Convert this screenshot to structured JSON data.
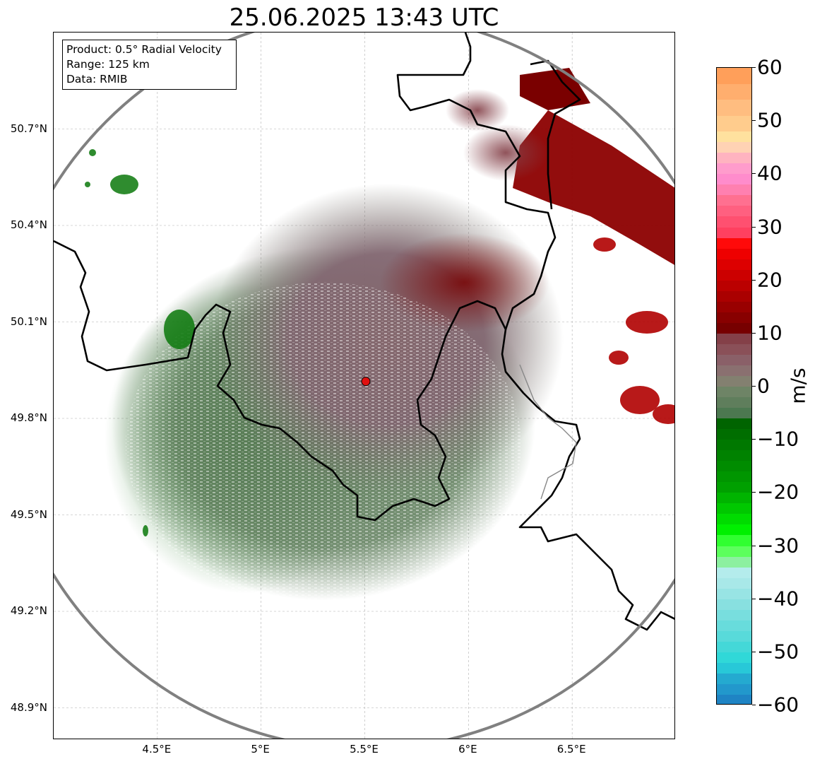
{
  "title": "25.06.2025 13:43 UTC",
  "info": {
    "product": "Product: 0.5° Radial Velocity",
    "range": "Range: 125 km",
    "source": "Data: RMIB"
  },
  "map": {
    "lon_range": [
      4.0,
      7.0
    ],
    "lat_range": [
      48.8,
      51.0
    ],
    "radar_site": {
      "lon": 5.505,
      "lat": 49.915
    },
    "lat_ticks": [
      "50.7°N",
      "50.4°N",
      "50.1°N",
      "49.8°N",
      "49.5°N",
      "49.2°N",
      "48.9°N"
    ],
    "lat_values": [
      50.7,
      50.4,
      50.1,
      49.8,
      49.5,
      49.2,
      48.9
    ],
    "lon_ticks": [
      "4.5°E",
      "5°E",
      "5.5°E",
      "6°E",
      "6.5°E"
    ],
    "lon_values": [
      4.5,
      5.0,
      5.5,
      6.0,
      6.5
    ],
    "grid": true,
    "range_ring_color": "#808080",
    "border_color": "#000000"
  },
  "colorbar": {
    "unit": "m/s",
    "min": -60,
    "max": 60,
    "tick_labels": [
      "60",
      "50",
      "40",
      "30",
      "20",
      "10",
      "0",
      "−10",
      "−20",
      "−30",
      "−40",
      "−50",
      "−60"
    ],
    "tick_values": [
      60,
      50,
      40,
      30,
      20,
      10,
      0,
      -10,
      -20,
      -30,
      -40,
      -50,
      -60
    ],
    "bands": [
      {
        "from": 57,
        "to": 60,
        "color": "#ff9f5a"
      },
      {
        "from": 54,
        "to": 57,
        "color": "#ffae6e"
      },
      {
        "from": 51,
        "to": 54,
        "color": "#ffbd80"
      },
      {
        "from": 48,
        "to": 51,
        "color": "#ffcc8d"
      },
      {
        "from": 46,
        "to": 48,
        "color": "#ffe19e"
      },
      {
        "from": 44,
        "to": 46,
        "color": "#ffd2b4"
      },
      {
        "from": 42,
        "to": 44,
        "color": "#ffb3c0"
      },
      {
        "from": 40,
        "to": 42,
        "color": "#ff9ccc"
      },
      {
        "from": 38,
        "to": 40,
        "color": "#ff8ccc"
      },
      {
        "from": 36,
        "to": 38,
        "color": "#ff80b0"
      },
      {
        "from": 34,
        "to": 36,
        "color": "#ff7090"
      },
      {
        "from": 32,
        "to": 34,
        "color": "#ff6080"
      },
      {
        "from": 30,
        "to": 32,
        "color": "#ff5070"
      },
      {
        "from": 28,
        "to": 30,
        "color": "#ff4060"
      },
      {
        "from": 26,
        "to": 28,
        "color": "#ff0a0a"
      },
      {
        "from": 24,
        "to": 26,
        "color": "#ee0000"
      },
      {
        "from": 22,
        "to": 24,
        "color": "#dd0000"
      },
      {
        "from": 20,
        "to": 22,
        "color": "#cc0000"
      },
      {
        "from": 18,
        "to": 20,
        "color": "#bb0000"
      },
      {
        "from": 16,
        "to": 18,
        "color": "#aa0000"
      },
      {
        "from": 14,
        "to": 16,
        "color": "#990000"
      },
      {
        "from": 12,
        "to": 14,
        "color": "#880000"
      },
      {
        "from": 10,
        "to": 12,
        "color": "#770000"
      },
      {
        "from": 8,
        "to": 10,
        "color": "#844048"
      },
      {
        "from": 6,
        "to": 8,
        "color": "#8a5058"
      },
      {
        "from": 4,
        "to": 6,
        "color": "#8a6068"
      },
      {
        "from": 2,
        "to": 4,
        "color": "#8a7070"
      },
      {
        "from": 0,
        "to": 2,
        "color": "#838070"
      },
      {
        "from": -2,
        "to": 0,
        "color": "#6e8466"
      },
      {
        "from": -4,
        "to": -2,
        "color": "#5f7e5c"
      },
      {
        "from": -6,
        "to": -4,
        "color": "#4c7850"
      },
      {
        "from": -8,
        "to": -6,
        "color": "#006400"
      },
      {
        "from": -10,
        "to": -8,
        "color": "#006e00"
      },
      {
        "from": -12,
        "to": -10,
        "color": "#007800"
      },
      {
        "from": -14,
        "to": -12,
        "color": "#008200"
      },
      {
        "from": -16,
        "to": -14,
        "color": "#008c00"
      },
      {
        "from": -18,
        "to": -16,
        "color": "#009600"
      },
      {
        "from": -20,
        "to": -18,
        "color": "#00a000"
      },
      {
        "from": -22,
        "to": -20,
        "color": "#00b400"
      },
      {
        "from": -24,
        "to": -22,
        "color": "#00c800"
      },
      {
        "from": -26,
        "to": -24,
        "color": "#00dc00"
      },
      {
        "from": -28,
        "to": -26,
        "color": "#00f000"
      },
      {
        "from": -30,
        "to": -28,
        "color": "#30ff30"
      },
      {
        "from": -32,
        "to": -30,
        "color": "#5cff5c"
      },
      {
        "from": -34,
        "to": -32,
        "color": "#8cf0a0"
      },
      {
        "from": -36,
        "to": -34,
        "color": "#b4ecec"
      },
      {
        "from": -38,
        "to": -36,
        "color": "#a8e8e8"
      },
      {
        "from": -40,
        "to": -38,
        "color": "#98e4e4"
      },
      {
        "from": -42,
        "to": -40,
        "color": "#88e0e0"
      },
      {
        "from": -44,
        "to": -42,
        "color": "#78dede"
      },
      {
        "from": -46,
        "to": -44,
        "color": "#68dcdc"
      },
      {
        "from": -48,
        "to": -46,
        "color": "#58dada"
      },
      {
        "from": -50,
        "to": -48,
        "color": "#44d8d8"
      },
      {
        "from": -52,
        "to": -50,
        "color": "#30d8d8"
      },
      {
        "from": -54,
        "to": -52,
        "color": "#28c8d8"
      },
      {
        "from": -56,
        "to": -54,
        "color": "#24aad0"
      },
      {
        "from": -58,
        "to": -56,
        "color": "#2298cc"
      },
      {
        "from": -60,
        "to": -58,
        "color": "#1f84c4"
      }
    ]
  }
}
